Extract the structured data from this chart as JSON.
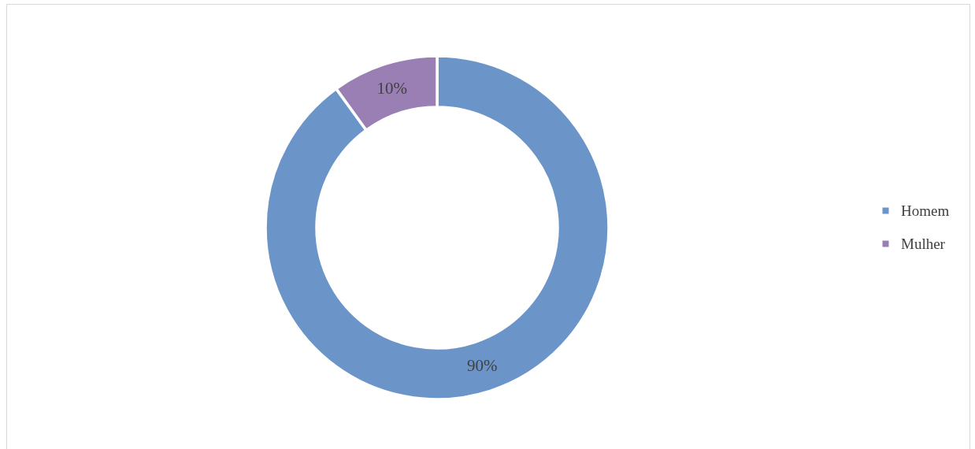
{
  "chart_data": {
    "type": "donut",
    "categories": [
      "Homem",
      "Mulher"
    ],
    "values": [
      90,
      10
    ],
    "colors": [
      "#6b95c8",
      "#9a7fb5"
    ],
    "value_labels": [
      "90%",
      "10%"
    ],
    "legend": "right"
  }
}
